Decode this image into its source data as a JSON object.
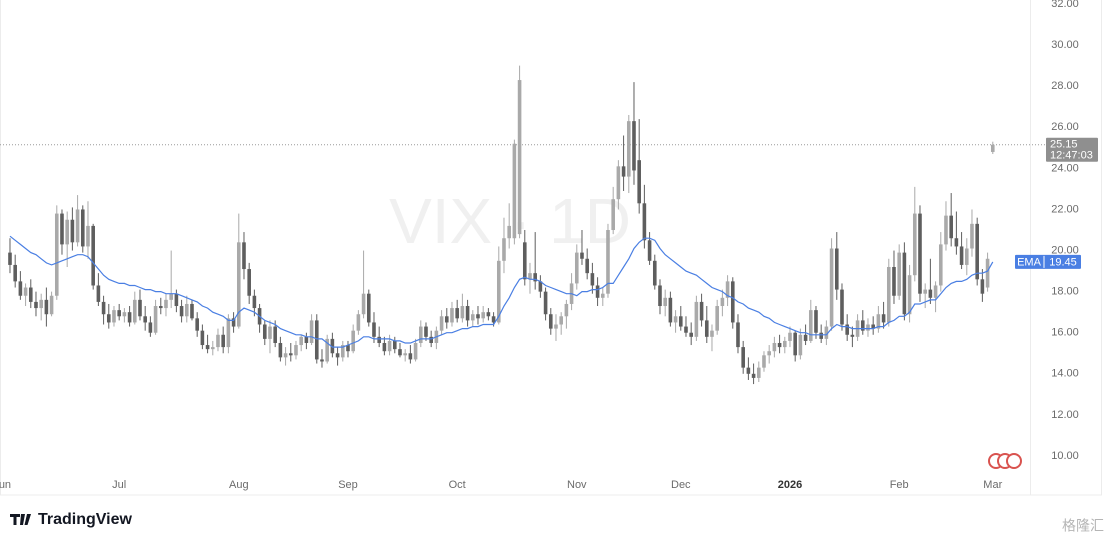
{
  "chart_data": {
    "type": "candlestick",
    "watermark": "VIX · 1D",
    "brand": "TradingView",
    "corner_mark": "格隆汇",
    "up_color": "#a9a9a9",
    "down_color": "#5e5e5e",
    "xlim": [
      -1.92,
      198.08
    ],
    "xticks": [
      {
        "value": -1.5,
        "label": "Jun"
      },
      {
        "value": 21,
        "label": "Jul"
      },
      {
        "value": 44,
        "label": "Aug"
      },
      {
        "value": 65,
        "label": "Sep"
      },
      {
        "value": 86,
        "label": "Oct"
      },
      {
        "value": 109,
        "label": "Nov"
      },
      {
        "value": 129,
        "label": "Dec"
      },
      {
        "value": 150,
        "label": "2026"
      },
      {
        "value": 171,
        "label": "Feb"
      },
      {
        "value": 189,
        "label": "Mar"
      }
    ],
    "ylim": [
      8.1,
      32.1
    ],
    "yticks": [
      {
        "value": 10,
        "label": "10.00"
      },
      {
        "value": 12,
        "label": "12.00"
      },
      {
        "value": 14,
        "label": "14.00"
      },
      {
        "value": 16,
        "label": "16.00"
      },
      {
        "value": 18,
        "label": "18.00"
      },
      {
        "value": 20,
        "label": "20.00"
      },
      {
        "value": 22,
        "label": "22.00"
      },
      {
        "value": 24,
        "label": "24.00"
      },
      {
        "value": 26,
        "label": "26.00"
      },
      {
        "value": 28,
        "label": "28.00"
      },
      {
        "value": 30,
        "label": "30.00"
      },
      {
        "value": 32,
        "label": "32.00"
      }
    ],
    "grid": false,
    "last_price": {
      "value": 25.15,
      "label": "25.15",
      "countdown": "12:47:03"
    },
    "ohlc": [
      [
        19.9,
        20.6,
        18.9,
        19.3
      ],
      [
        19.3,
        19.8,
        18.2,
        18.5
      ],
      [
        18.5,
        19.0,
        17.6,
        17.8
      ],
      [
        17.8,
        18.4,
        17.3,
        18.2
      ],
      [
        18.2,
        18.6,
        17.2,
        17.5
      ],
      [
        17.5,
        18.0,
        16.8,
        17.2
      ],
      [
        17.2,
        17.9,
        16.6,
        17.6
      ],
      [
        17.6,
        18.2,
        16.3,
        16.9
      ],
      [
        16.9,
        18.0,
        16.8,
        17.8
      ],
      [
        17.8,
        22.2,
        17.6,
        21.8
      ],
      [
        21.8,
        22.0,
        19.8,
        20.3
      ],
      [
        20.3,
        21.9,
        19.2,
        21.5
      ],
      [
        21.5,
        22.1,
        20.0,
        20.4
      ],
      [
        20.4,
        22.7,
        20.2,
        22.0
      ],
      [
        22.0,
        22.2,
        19.9,
        20.2
      ],
      [
        20.2,
        22.4,
        19.6,
        21.2
      ],
      [
        21.2,
        21.3,
        18.1,
        18.3
      ],
      [
        18.3,
        18.9,
        17.3,
        17.5
      ],
      [
        17.5,
        17.8,
        16.4,
        16.9
      ],
      [
        16.9,
        17.4,
        16.2,
        16.5
      ],
      [
        16.5,
        17.3,
        16.3,
        17.1
      ],
      [
        17.1,
        17.4,
        16.6,
        16.8
      ],
      [
        16.8,
        17.2,
        16.5,
        17.0
      ],
      [
        17.0,
        17.3,
        16.3,
        16.5
      ],
      [
        16.5,
        18.0,
        16.4,
        17.6
      ],
      [
        17.6,
        18.1,
        16.6,
        16.8
      ],
      [
        16.8,
        17.3,
        16.1,
        16.5
      ],
      [
        16.5,
        16.8,
        15.8,
        16.0
      ],
      [
        16.0,
        17.6,
        15.9,
        17.3
      ],
      [
        17.3,
        17.7,
        16.9,
        17.2
      ],
      [
        17.2,
        17.9,
        16.8,
        17.6
      ],
      [
        17.6,
        20.0,
        17.2,
        17.9
      ],
      [
        17.9,
        18.1,
        17.0,
        17.3
      ],
      [
        17.3,
        17.6,
        16.5,
        16.8
      ],
      [
        16.8,
        17.8,
        16.5,
        17.4
      ],
      [
        17.4,
        17.6,
        16.6,
        16.7
      ],
      [
        16.7,
        17.0,
        15.8,
        16.1
      ],
      [
        16.1,
        16.4,
        15.2,
        15.4
      ],
      [
        15.4,
        15.9,
        15.0,
        15.2
      ],
      [
        15.2,
        15.6,
        14.9,
        15.3
      ],
      [
        15.3,
        16.2,
        15.1,
        15.9
      ],
      [
        15.9,
        16.3,
        15.0,
        15.3
      ],
      [
        15.3,
        16.9,
        15.0,
        16.7
      ],
      [
        16.7,
        17.0,
        16.0,
        16.3
      ],
      [
        16.3,
        21.8,
        16.2,
        20.4
      ],
      [
        20.4,
        20.9,
        18.6,
        19.1
      ],
      [
        19.1,
        19.4,
        17.4,
        17.8
      ],
      [
        17.8,
        18.1,
        16.8,
        17.2
      ],
      [
        17.2,
        17.4,
        16.0,
        16.4
      ],
      [
        16.4,
        16.6,
        15.4,
        15.7
      ],
      [
        15.7,
        16.6,
        15.0,
        16.3
      ],
      [
        16.3,
        16.6,
        15.3,
        15.5
      ],
      [
        15.5,
        15.8,
        14.6,
        14.8
      ],
      [
        14.8,
        15.3,
        14.4,
        15.0
      ],
      [
        15.0,
        15.5,
        14.6,
        14.9
      ],
      [
        14.9,
        15.6,
        14.7,
        15.4
      ],
      [
        15.4,
        15.9,
        15.1,
        15.8
      ],
      [
        15.8,
        16.0,
        15.2,
        15.5
      ],
      [
        15.5,
        16.9,
        15.4,
        16.6
      ],
      [
        16.6,
        16.9,
        14.5,
        14.7
      ],
      [
        14.7,
        15.2,
        14.3,
        14.6
      ],
      [
        14.6,
        15.9,
        14.5,
        15.7
      ],
      [
        15.7,
        16.0,
        14.8,
        15.0
      ],
      [
        15.0,
        15.3,
        14.4,
        14.8
      ],
      [
        14.8,
        15.6,
        14.6,
        15.4
      ],
      [
        15.4,
        15.6,
        14.8,
        15.1
      ],
      [
        15.1,
        16.4,
        15.0,
        16.1
      ],
      [
        16.1,
        17.1,
        15.9,
        16.9
      ],
      [
        16.9,
        20.0,
        16.7,
        17.9
      ],
      [
        17.9,
        18.1,
        16.3,
        16.5
      ],
      [
        16.5,
        17.0,
        15.5,
        15.8
      ],
      [
        15.8,
        16.3,
        15.3,
        15.5
      ],
      [
        15.5,
        15.8,
        14.9,
        15.1
      ],
      [
        15.1,
        15.9,
        14.9,
        15.6
      ],
      [
        15.6,
        15.8,
        15.0,
        15.2
      ],
      [
        15.2,
        15.5,
        14.8,
        14.9
      ],
      [
        14.9,
        15.2,
        14.6,
        15.0
      ],
      [
        15.0,
        15.4,
        14.5,
        14.7
      ],
      [
        14.7,
        15.7,
        14.6,
        15.5
      ],
      [
        15.5,
        16.6,
        15.3,
        16.3
      ],
      [
        16.3,
        16.5,
        15.6,
        15.8
      ],
      [
        15.8,
        16.1,
        15.3,
        15.5
      ],
      [
        15.5,
        16.3,
        15.2,
        16.1
      ],
      [
        16.1,
        17.1,
        15.9,
        16.8
      ],
      [
        16.8,
        17.2,
        16.2,
        16.5
      ],
      [
        16.5,
        17.5,
        16.3,
        17.2
      ],
      [
        17.2,
        17.6,
        16.5,
        16.7
      ],
      [
        16.7,
        17.9,
        16.5,
        17.3
      ],
      [
        17.3,
        17.6,
        16.3,
        16.6
      ],
      [
        16.6,
        17.1,
        16.3,
        16.9
      ],
      [
        16.9,
        17.3,
        16.4,
        16.7
      ],
      [
        16.7,
        17.3,
        16.5,
        17.0
      ],
      [
        17.0,
        17.2,
        16.6,
        16.8
      ],
      [
        16.8,
        17.0,
        16.3,
        16.5
      ],
      [
        16.5,
        20.2,
        16.4,
        19.5
      ],
      [
        19.5,
        21.6,
        18.9,
        20.6
      ],
      [
        20.6,
        22.3,
        20.1,
        21.2
      ],
      [
        20.6,
        25.4,
        20.3,
        25.2
      ],
      [
        20.8,
        29.0,
        20.6,
        28.3
      ],
      [
        20.4,
        21.0,
        18.3,
        18.6
      ],
      [
        18.6,
        19.4,
        17.9,
        18.9
      ],
      [
        18.9,
        20.9,
        18.1,
        18.5
      ],
      [
        18.5,
        18.8,
        17.7,
        18.0
      ],
      [
        18.0,
        18.2,
        16.6,
        16.9
      ],
      [
        16.9,
        17.2,
        15.9,
        16.2
      ],
      [
        16.2,
        16.9,
        15.6,
        16.4
      ],
      [
        16.4,
        17.0,
        15.9,
        16.8
      ],
      [
        16.8,
        17.6,
        16.2,
        17.4
      ],
      [
        17.4,
        18.9,
        17.1,
        18.4
      ],
      [
        18.4,
        20.3,
        18.1,
        19.9
      ],
      [
        19.9,
        21.0,
        19.3,
        19.6
      ],
      [
        19.6,
        20.1,
        18.6,
        18.9
      ],
      [
        18.9,
        19.4,
        17.9,
        18.3
      ],
      [
        18.3,
        18.7,
        17.3,
        17.7
      ],
      [
        17.7,
        18.2,
        17.3,
        17.9
      ],
      [
        17.9,
        21.3,
        17.7,
        21.0
      ],
      [
        21.0,
        23.1,
        20.8,
        22.5
      ],
      [
        22.5,
        24.4,
        22.0,
        24.1
      ],
      [
        24.1,
        25.6,
        22.9,
        23.6
      ],
      [
        23.6,
        26.6,
        22.8,
        26.3
      ],
      [
        26.3,
        28.2,
        23.2,
        23.9
      ],
      [
        24.4,
        26.4,
        21.8,
        22.3
      ],
      [
        22.3,
        23.2,
        20.1,
        20.5
      ],
      [
        20.5,
        20.9,
        19.3,
        19.5
      ],
      [
        19.5,
        19.8,
        18.1,
        18.3
      ],
      [
        18.3,
        18.6,
        16.9,
        17.3
      ],
      [
        17.3,
        18.1,
        16.8,
        17.7
      ],
      [
        17.7,
        18.0,
        16.3,
        16.5
      ],
      [
        16.5,
        17.1,
        16.0,
        16.8
      ],
      [
        16.8,
        17.3,
        16.1,
        16.3
      ],
      [
        16.3,
        16.8,
        15.8,
        16.0
      ],
      [
        16.0,
        16.5,
        15.4,
        15.8
      ],
      [
        15.8,
        17.8,
        15.6,
        17.5
      ],
      [
        17.5,
        17.9,
        16.3,
        16.6
      ],
      [
        16.6,
        17.3,
        15.5,
        15.8
      ],
      [
        15.8,
        16.4,
        15.1,
        16.1
      ],
      [
        16.1,
        17.6,
        15.9,
        17.3
      ],
      [
        17.3,
        18.1,
        16.8,
        17.7
      ],
      [
        17.7,
        18.8,
        17.3,
        18.5
      ],
      [
        18.5,
        18.7,
        16.2,
        16.5
      ],
      [
        16.5,
        16.9,
        15.0,
        15.3
      ],
      [
        15.3,
        15.6,
        14.0,
        14.3
      ],
      [
        14.3,
        14.8,
        13.7,
        14.0
      ],
      [
        14.0,
        14.5,
        13.5,
        13.8
      ],
      [
        13.8,
        14.6,
        13.6,
        14.3
      ],
      [
        14.3,
        15.1,
        14.1,
        14.9
      ],
      [
        14.9,
        15.4,
        14.5,
        15.1
      ],
      [
        15.1,
        15.8,
        14.8,
        15.5
      ],
      [
        15.5,
        15.9,
        15.0,
        15.3
      ],
      [
        15.3,
        15.8,
        15.0,
        15.6
      ],
      [
        15.6,
        16.3,
        15.3,
        16.0
      ],
      [
        16.0,
        16.1,
        14.6,
        14.9
      ],
      [
        14.9,
        16.2,
        14.7,
        15.9
      ],
      [
        15.9,
        16.4,
        15.4,
        15.6
      ],
      [
        15.6,
        17.6,
        15.5,
        17.1
      ],
      [
        17.1,
        17.3,
        15.7,
        16.0
      ],
      [
        16.0,
        16.4,
        15.5,
        15.7
      ],
      [
        15.7,
        16.6,
        15.4,
        16.3
      ],
      [
        16.3,
        20.6,
        16.1,
        20.1
      ],
      [
        20.1,
        20.9,
        17.6,
        18.1
      ],
      [
        18.1,
        18.4,
        16.1,
        16.4
      ],
      [
        16.4,
        16.9,
        15.6,
        15.9
      ],
      [
        15.9,
        16.3,
        15.3,
        15.8
      ],
      [
        15.8,
        16.9,
        15.6,
        16.6
      ],
      [
        16.6,
        17.1,
        15.9,
        16.1
      ],
      [
        16.1,
        16.7,
        15.8,
        16.4
      ],
      [
        16.4,
        16.8,
        15.9,
        16.2
      ],
      [
        16.2,
        17.3,
        16.0,
        16.9
      ],
      [
        16.9,
        17.5,
        16.2,
        16.5
      ],
      [
        16.5,
        19.6,
        16.3,
        19.2
      ],
      [
        19.2,
        20.0,
        17.4,
        17.8
      ],
      [
        17.8,
        20.3,
        17.6,
        19.9
      ],
      [
        19.9,
        20.4,
        16.6,
        16.9
      ],
      [
        16.9,
        19.3,
        16.5,
        18.8
      ],
      [
        18.8,
        23.1,
        18.5,
        21.8
      ],
      [
        21.8,
        22.2,
        17.5,
        17.9
      ],
      [
        17.9,
        18.4,
        17.2,
        18.1
      ],
      [
        18.1,
        19.6,
        17.4,
        17.7
      ],
      [
        17.7,
        18.5,
        17.0,
        18.3
      ],
      [
        18.3,
        20.9,
        18.0,
        20.3
      ],
      [
        20.3,
        22.4,
        20.0,
        21.7
      ],
      [
        21.7,
        22.8,
        20.2,
        20.6
      ],
      [
        20.6,
        21.9,
        19.8,
        20.2
      ],
      [
        20.2,
        20.9,
        19.1,
        19.3
      ],
      [
        19.3,
        20.6,
        18.8,
        20.1
      ],
      [
        20.1,
        22.0,
        19.7,
        21.3
      ],
      [
        21.3,
        21.6,
        18.3,
        18.6
      ],
      [
        18.6,
        19.1,
        17.5,
        17.9
      ],
      [
        18.2,
        19.9,
        18.0,
        19.6
      ],
      [
        24.8,
        25.3,
        24.7,
        25.15
      ]
    ],
    "ema": {
      "name": "EMA",
      "color": "#4a7fe3",
      "last_label": "19.45",
      "values": [
        20.7,
        20.5,
        20.3,
        20.1,
        19.9,
        19.8,
        19.6,
        19.4,
        19.3,
        19.4,
        19.5,
        19.6,
        19.7,
        19.8,
        19.8,
        19.7,
        19.4,
        19.1,
        18.8,
        18.6,
        18.5,
        18.4,
        18.4,
        18.3,
        18.3,
        18.2,
        18.1,
        18.1,
        18.0,
        18.0,
        17.9,
        17.9,
        17.9,
        17.8,
        17.7,
        17.6,
        17.5,
        17.3,
        17.2,
        17.0,
        16.9,
        16.8,
        16.6,
        16.6,
        17.0,
        17.2,
        17.1,
        17.0,
        16.8,
        16.6,
        16.5,
        16.4,
        16.2,
        16.1,
        16.0,
        15.9,
        15.9,
        15.8,
        15.8,
        15.7,
        15.7,
        15.5,
        15.3,
        15.3,
        15.3,
        15.4,
        15.5,
        15.6,
        15.8,
        15.8,
        15.7,
        15.7,
        15.7,
        15.7,
        15.6,
        15.6,
        15.5,
        15.5,
        15.6,
        15.7,
        15.7,
        15.7,
        15.8,
        15.9,
        16.0,
        16.0,
        16.1,
        16.2,
        16.2,
        16.3,
        16.3,
        16.4,
        16.4,
        16.4,
        16.8,
        17.3,
        17.7,
        18.2,
        18.6,
        18.7,
        18.6,
        18.6,
        18.5,
        18.3,
        18.2,
        18.1,
        18.0,
        17.9,
        17.9,
        17.8,
        18.0,
        18.0,
        18.1,
        18.1,
        18.2,
        18.4,
        18.4,
        18.8,
        19.2,
        19.6,
        20.1,
        20.4,
        20.6,
        20.6,
        20.5,
        20.1,
        19.8,
        19.6,
        19.4,
        19.2,
        19.0,
        18.9,
        18.8,
        18.6,
        18.4,
        18.2,
        18.1,
        18.0,
        17.8,
        17.7,
        17.5,
        17.4,
        17.2,
        17.1,
        17.0,
        16.8,
        16.7,
        16.5,
        16.4,
        16.3,
        16.2,
        16.1,
        16.0,
        16.0,
        15.9,
        15.9,
        15.9,
        15.9,
        16.2,
        16.4,
        16.3,
        16.3,
        16.2,
        16.2,
        16.2,
        16.2,
        16.2,
        16.3,
        16.3,
        16.5,
        16.6,
        16.8,
        16.8,
        17.0,
        17.4,
        17.4,
        17.5,
        17.6,
        17.6,
        17.9,
        18.2,
        18.4,
        18.5,
        18.5,
        18.6,
        18.8,
        18.9,
        18.9,
        19.0,
        19.45
      ]
    }
  }
}
